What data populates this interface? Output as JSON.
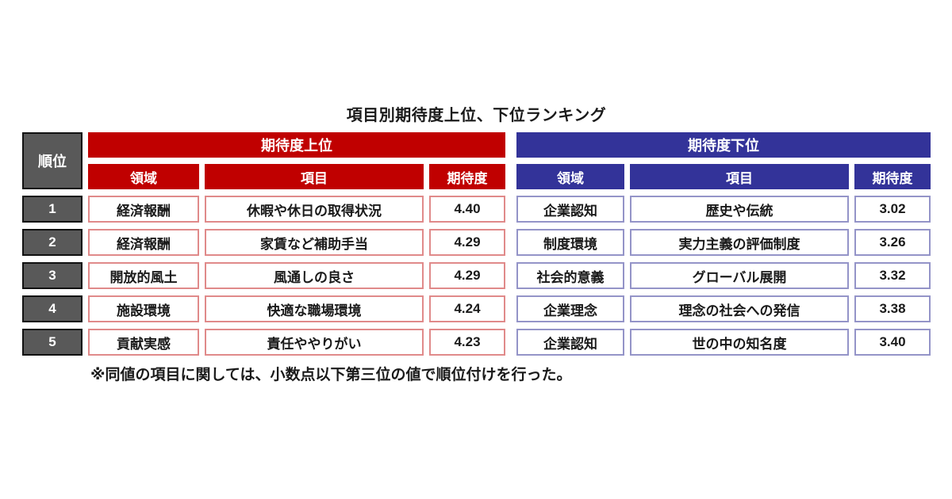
{
  "title": "項目別期待度上位、下位ランキング",
  "footnote": "※同値の項目に関しては、小数点以下第三位の値で順位付けを行った。",
  "colors": {
    "red": "#c00000",
    "blue": "#333399",
    "gray": "#595959",
    "red_border": "#e08a8a",
    "blue_border": "#9494c8"
  },
  "table": {
    "rank_header": "順位",
    "groups": [
      {
        "label": "期待度上位",
        "columns": [
          "領域",
          "項目",
          "期待度"
        ]
      },
      {
        "label": "期待度下位",
        "columns": [
          "領域",
          "項目",
          "期待度"
        ]
      }
    ],
    "rows": [
      {
        "rank": "1",
        "top": {
          "area": "経済報酬",
          "item": "休暇や休日の取得状況",
          "score": "4.40"
        },
        "bottom": {
          "area": "企業認知",
          "item": "歴史や伝統",
          "score": "3.02"
        }
      },
      {
        "rank": "2",
        "top": {
          "area": "経済報酬",
          "item": "家賃など補助手当",
          "score": "4.29"
        },
        "bottom": {
          "area": "制度環境",
          "item": "実力主義の評価制度",
          "score": "3.26"
        }
      },
      {
        "rank": "3",
        "top": {
          "area": "開放的風土",
          "item": "風通しの良さ",
          "score": "4.29"
        },
        "bottom": {
          "area": "社会的意義",
          "item": "グローバル展開",
          "score": "3.32"
        }
      },
      {
        "rank": "4",
        "top": {
          "area": "施設環境",
          "item": "快適な職場環境",
          "score": "4.24"
        },
        "bottom": {
          "area": "企業理念",
          "item": "理念の社会への発信",
          "score": "3.38"
        }
      },
      {
        "rank": "5",
        "top": {
          "area": "貢献実感",
          "item": "責任ややりがい",
          "score": "4.23"
        },
        "bottom": {
          "area": "企業認知",
          "item": "世の中の知名度",
          "score": "3.40"
        }
      }
    ]
  }
}
